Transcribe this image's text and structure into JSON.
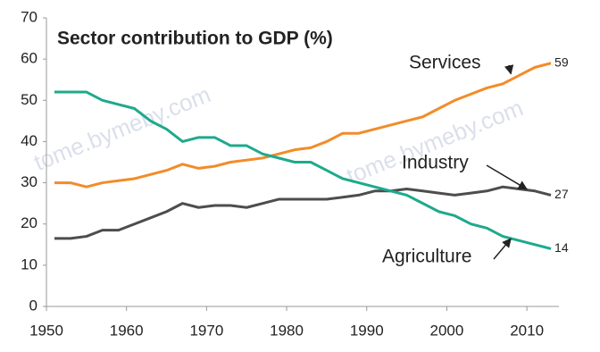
{
  "chart_data": {
    "type": "line",
    "title": "Sector contribution to GDP (%)",
    "watermark": "tome.bymeby.com",
    "x": [
      1951,
      1953,
      1955,
      1957,
      1959,
      1961,
      1963,
      1965,
      1967,
      1969,
      1971,
      1973,
      1975,
      1977,
      1979,
      1981,
      1983,
      1985,
      1987,
      1989,
      1991,
      1993,
      1995,
      1997,
      1999,
      2001,
      2003,
      2005,
      2007,
      2009,
      2011,
      2013
    ],
    "series": [
      {
        "name": "Services",
        "color": "#f28c28",
        "values": [
          30,
          30,
          29,
          30,
          30.5,
          31,
          32,
          33,
          34.5,
          33.5,
          34,
          35,
          35.5,
          36,
          37,
          38,
          38.5,
          40,
          42,
          42,
          43,
          44,
          45,
          46,
          48,
          50,
          51.5,
          53,
          54,
          56,
          58,
          59
        ]
      },
      {
        "name": "Industry",
        "color": "#4d4d4d",
        "values": [
          16.5,
          16.5,
          17,
          18.5,
          18.5,
          20,
          21.5,
          23,
          25,
          24,
          24.5,
          24.5,
          24,
          25,
          26,
          26,
          26,
          26,
          26.5,
          27,
          28,
          28,
          28.5,
          28,
          27.5,
          27,
          27.5,
          28,
          29,
          28.5,
          28,
          27
        ]
      },
      {
        "name": "Agriculture",
        "color": "#1ea98d",
        "values": [
          52,
          52,
          52,
          50,
          49,
          48,
          45,
          43,
          40,
          41,
          41,
          39,
          39,
          37,
          36,
          35,
          35,
          33,
          31,
          30,
          29,
          28,
          27,
          25,
          23,
          22,
          20,
          19,
          17,
          16,
          15,
          14
        ]
      }
    ],
    "xlim": [
      1950,
      2014
    ],
    "xticks": [
      1950,
      1960,
      1970,
      1980,
      1990,
      2000,
      2010
    ],
    "ylim": [
      0,
      70
    ],
    "yticks": [
      0,
      10,
      20,
      30,
      40,
      50,
      60,
      70
    ]
  }
}
